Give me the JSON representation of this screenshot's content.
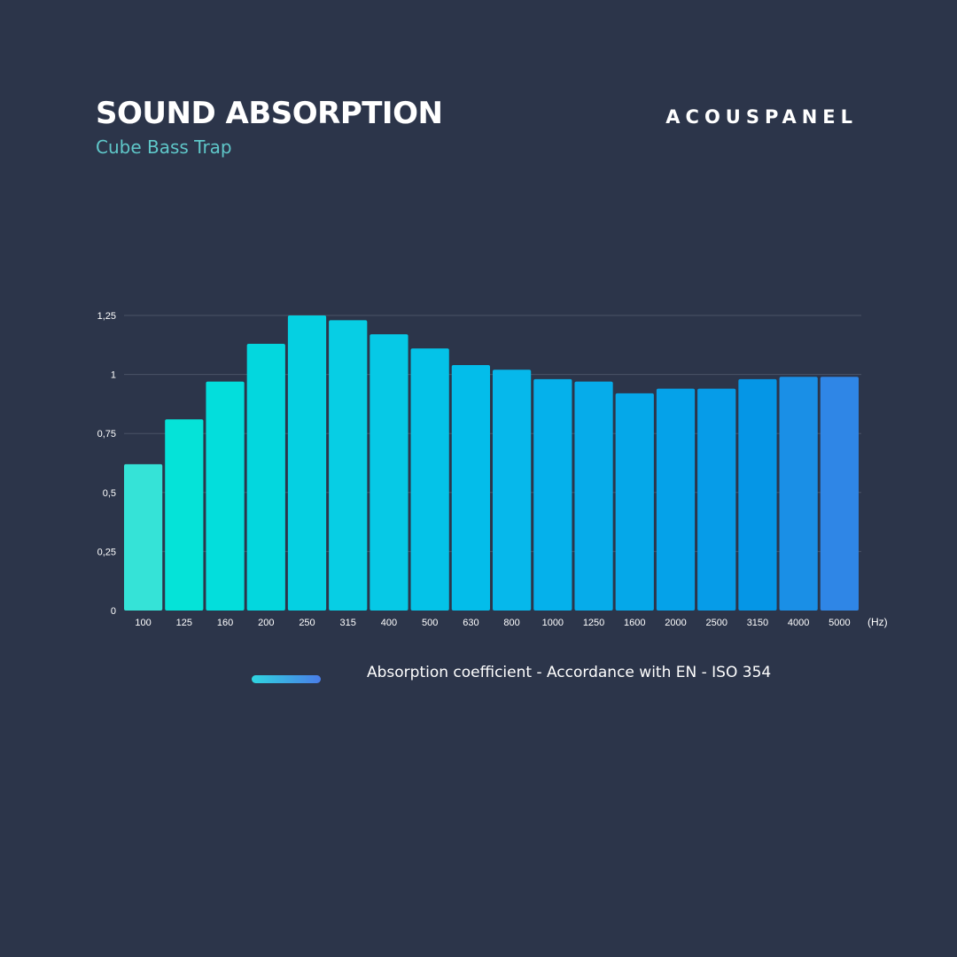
{
  "header": {
    "title": "SOUND ABSORPTION",
    "subtitle": "Cube Bass Trap",
    "brand": "ACOUSPANEL"
  },
  "legend": {
    "label": "Absorption coefficient - Accordance with EN - ISO 354"
  },
  "colors": {
    "background": "#2c354a",
    "gridline": "#4a5366",
    "bar_start": "#2fe8d6",
    "bar_end": "#2f86e6"
  },
  "chart_data": {
    "type": "bar",
    "categories": [
      "100",
      "125",
      "160",
      "200",
      "250",
      "315",
      "400",
      "500",
      "630",
      "800",
      "1000",
      "1250",
      "1600",
      "2000",
      "2500",
      "3150",
      "4000",
      "5000"
    ],
    "values": [
      0.62,
      0.81,
      0.97,
      1.13,
      1.25,
      1.23,
      1.17,
      1.11,
      1.04,
      1.02,
      0.98,
      0.97,
      0.92,
      0.94,
      0.94,
      0.98,
      0.99,
      0.99
    ],
    "bar_colors": [
      "#35e3d7",
      "#05e3d8",
      "#03dedc",
      "#03d7de",
      "#05d0e2",
      "#07cee4",
      "#06c9e6",
      "#04c3e8",
      "#03bdea",
      "#06b8eb",
      "#05b1eb",
      "#06acea",
      "#05a8e9",
      "#05a2e9",
      "#069ce8",
      "#0596e6",
      "#1a8fe6",
      "#2f86e6"
    ],
    "ytick_labels": [
      "0",
      "0,25",
      "0,5",
      "0,75",
      "1",
      "1,25"
    ],
    "ytick_values": [
      0,
      0.25,
      0.5,
      0.75,
      1,
      1.25
    ],
    "x_unit": "(Hz)",
    "ylim": [
      0,
      1.25
    ],
    "grid": true
  }
}
